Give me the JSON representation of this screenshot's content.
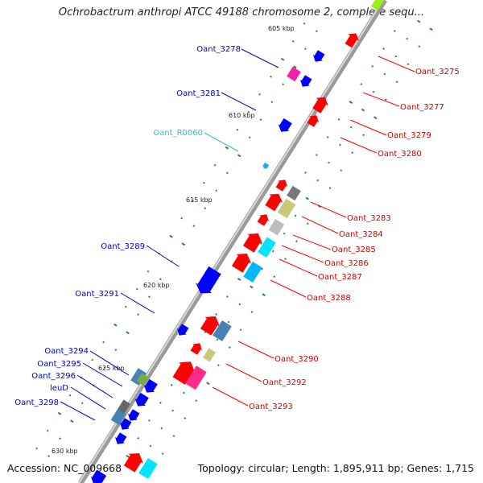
{
  "title": "Ochrobactrum anthropi ATCC 49188 chromosome 2, complete sequ...",
  "footer": {
    "accession": "Accession: NC_009668",
    "topology": "Topology: circular; Length: 1,895,911 bp; Genes: 1,715"
  },
  "colors": {
    "forward_label": "#cc0000",
    "reverse_label": "#0000cc",
    "rna_label": "#33bbdd",
    "tick": "#2a8a2a",
    "backbone": "#9a9a9a"
  },
  "kbp_markers": [
    "605 kbp",
    "610 kbp",
    "615 kbp",
    "620 kbp",
    "625 kbp",
    "630 kbp"
  ],
  "genes_right": [
    {
      "label": "Oant_3275",
      "color": "#ff0000"
    },
    {
      "label": "Oant_3277",
      "color": "#ff0000"
    },
    {
      "label": "Oant_3279",
      "color": "#ff0000"
    },
    {
      "label": "Oant_3280",
      "color": "#ff0000"
    },
    {
      "label": "Oant_3283",
      "color": "#777777"
    },
    {
      "label": "Oant_3284",
      "color": "#c8c87a"
    },
    {
      "label": "Oant_3285",
      "color": "#bdbdbd"
    },
    {
      "label": "Oant_3286",
      "color": "#00e5ff"
    },
    {
      "label": "Oant_3287",
      "color": "#00b8ff"
    },
    {
      "label": "Oant_3288",
      "color": "#ff0000"
    },
    {
      "label": "Oant_3290",
      "color": "#4682b4"
    },
    {
      "label": "Oant_3292",
      "color": "#c8c87a"
    },
    {
      "label": "Oant_3293",
      "color": "#ff2a8a"
    }
  ],
  "genes_left": [
    {
      "label": "Oant_3278",
      "color": "#ee22aa"
    },
    {
      "label": "Oant_3281",
      "color": "#0000ff"
    },
    {
      "label": "Oant_R0060",
      "color": "#22aaee"
    },
    {
      "label": "Oant_3289",
      "color": "#0000ff"
    },
    {
      "label": "Oant_3291",
      "color": "#0000ff"
    },
    {
      "label": "Oant_3294",
      "color": "#77aa44"
    },
    {
      "label": "Oant_3295",
      "color": "#4682b4"
    },
    {
      "label": "Oant_3296",
      "color": "#0000ff"
    },
    {
      "label": "leuD",
      "color": "#666666"
    },
    {
      "label": "Oant_3298",
      "color": "#4682b4"
    }
  ]
}
